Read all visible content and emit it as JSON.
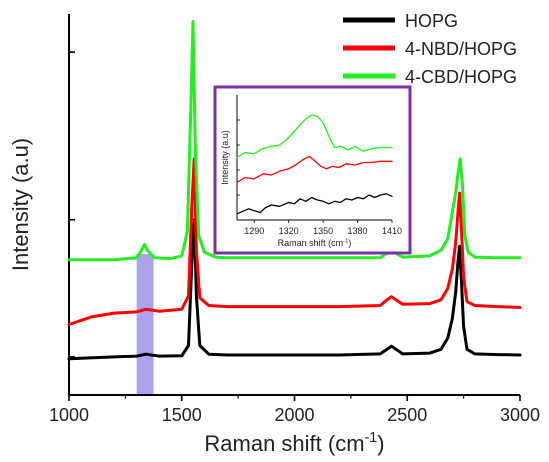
{
  "chart_data": [
    {
      "type": "line",
      "title": "",
      "xlabel_main": "Raman shift (cm",
      "xlabel_sup": "-1",
      "xlabel_end": ")",
      "ylabel": "Intensity (a.u)",
      "xlim": [
        1000,
        3000
      ],
      "ylim": [
        0,
        10
      ],
      "xticks": [
        1000,
        1500,
        2000,
        2500,
        3000
      ],
      "xtick_labels": [
        "1000",
        "1500",
        "2000",
        "2500",
        "3000"
      ],
      "ytick_labels_shown": false,
      "grid": false,
      "legend_position": "top-right",
      "highlight_region": {
        "x": [
          1300,
          1375
        ],
        "color": "#9b92e6"
      },
      "series": [
        {
          "name": "HOPG",
          "color": "#000000",
          "x": [
            1000,
            1200,
            1300,
            1340,
            1400,
            1500,
            1530,
            1545,
            1555,
            1565,
            1580,
            1620,
            1700,
            1800,
            2000,
            2200,
            2380,
            2410,
            2430,
            2450,
            2480,
            2600,
            2650,
            2680,
            2700,
            2715,
            2725,
            2732,
            2740,
            2750,
            2765,
            2800,
            2900,
            3000
          ],
          "y": [
            0.95,
            1.0,
            1.02,
            1.07,
            1.02,
            1.03,
            1.3,
            3.5,
            4.6,
            2.6,
            1.3,
            1.07,
            1.05,
            1.05,
            1.05,
            1.05,
            1.08,
            1.2,
            1.28,
            1.2,
            1.08,
            1.1,
            1.2,
            1.5,
            2.0,
            2.7,
            3.5,
            3.9,
            3.0,
            1.8,
            1.2,
            1.08,
            1.06,
            1.05
          ]
        },
        {
          "name": "4-NBD/HOPG",
          "color": "#ff0000",
          "x": [
            1000,
            1100,
            1200,
            1300,
            1340,
            1400,
            1500,
            1530,
            1545,
            1555,
            1565,
            1580,
            1620,
            1700,
            1800,
            2000,
            2200,
            2380,
            2410,
            2430,
            2450,
            2480,
            2600,
            2650,
            2680,
            2700,
            2715,
            2725,
            2732,
            2740,
            2750,
            2765,
            2800,
            2900,
            3000
          ],
          "y": [
            1.85,
            2.05,
            2.15,
            2.18,
            2.25,
            2.2,
            2.25,
            2.6,
            5.0,
            6.2,
            3.8,
            2.55,
            2.35,
            2.32,
            2.32,
            2.32,
            2.32,
            2.35,
            2.5,
            2.58,
            2.5,
            2.38,
            2.4,
            2.5,
            2.8,
            3.3,
            4.0,
            4.8,
            5.3,
            4.4,
            3.1,
            2.45,
            2.35,
            2.32,
            2.3
          ]
        },
        {
          "name": "4-CBD/HOPG",
          "color": "#22ee22",
          "x": [
            1000,
            1200,
            1300,
            1320,
            1335,
            1350,
            1380,
            1450,
            1500,
            1525,
            1540,
            1550,
            1560,
            1575,
            1600,
            1650,
            1700,
            1800,
            2000,
            2200,
            2380,
            2410,
            2430,
            2450,
            2480,
            2600,
            2650,
            2680,
            2700,
            2715,
            2725,
            2735,
            2745,
            2755,
            2770,
            2800,
            2900,
            3000
          ],
          "y": [
            3.55,
            3.55,
            3.6,
            3.78,
            3.95,
            3.78,
            3.6,
            3.58,
            3.65,
            4.3,
            7.5,
            9.8,
            6.5,
            4.2,
            3.75,
            3.62,
            3.6,
            3.6,
            3.6,
            3.6,
            3.6,
            3.72,
            3.8,
            3.72,
            3.62,
            3.65,
            3.8,
            4.1,
            4.8,
            5.3,
            5.8,
            6.2,
            5.5,
            4.2,
            3.75,
            3.62,
            3.6,
            3.6
          ]
        }
      ]
    },
    {
      "type": "line",
      "title": "",
      "xlabel_main": "Raman shift (cm",
      "xlabel_sup": "-1",
      "xlabel_end": ")",
      "ylabel": "Intensity (a.u)",
      "xlim": [
        1275,
        1410
      ],
      "ylim": [
        0,
        10
      ],
      "xticks": [
        1290,
        1320,
        1350,
        1380,
        1410
      ],
      "xtick_labels": [
        "1290",
        "1320",
        "1350",
        "1380",
        "1410"
      ],
      "ytick_labels_shown": false,
      "grid": false,
      "frame_color": "#7b2fa8",
      "series": [
        {
          "name": "HOPG",
          "color": "#000000",
          "x": [
            1275,
            1285,
            1295,
            1300,
            1305,
            1312,
            1320,
            1325,
            1330,
            1335,
            1340,
            1345,
            1350,
            1355,
            1360,
            1365,
            1370,
            1375,
            1380,
            1385,
            1390,
            1395,
            1400,
            1405,
            1410
          ],
          "y": [
            0.5,
            0.9,
            0.6,
            1.0,
            1.2,
            1.1,
            1.4,
            1.3,
            1.7,
            1.5,
            1.8,
            1.6,
            1.5,
            1.3,
            1.5,
            1.4,
            1.7,
            1.6,
            1.8,
            1.7,
            2.0,
            1.8,
            2.0,
            2.1,
            1.9
          ]
        },
        {
          "name": "4-NBD/HOPG",
          "color": "#ff0000",
          "x": [
            1275,
            1282,
            1290,
            1298,
            1305,
            1312,
            1320,
            1326,
            1332,
            1338,
            1343,
            1348,
            1353,
            1358,
            1364,
            1370,
            1378,
            1385,
            1392,
            1400,
            1410
          ],
          "y": [
            3.0,
            3.4,
            3.3,
            3.7,
            3.6,
            3.9,
            4.1,
            4.4,
            4.8,
            5.1,
            4.7,
            4.3,
            4.1,
            4.3,
            4.2,
            4.5,
            4.4,
            4.6,
            4.6,
            4.7,
            4.7
          ]
        },
        {
          "name": "4-CBD/HOPG",
          "color": "#22ee22",
          "x": [
            1275,
            1282,
            1290,
            1297,
            1305,
            1312,
            1318,
            1324,
            1330,
            1335,
            1340,
            1345,
            1350,
            1355,
            1360,
            1366,
            1372,
            1378,
            1385,
            1392,
            1400,
            1410
          ],
          "y": [
            5.0,
            5.4,
            5.3,
            5.7,
            5.9,
            6.0,
            6.4,
            7.0,
            7.6,
            8.1,
            8.4,
            8.3,
            7.8,
            6.7,
            5.8,
            5.9,
            5.6,
            5.9,
            5.5,
            5.7,
            5.8,
            5.8
          ]
        }
      ]
    }
  ]
}
